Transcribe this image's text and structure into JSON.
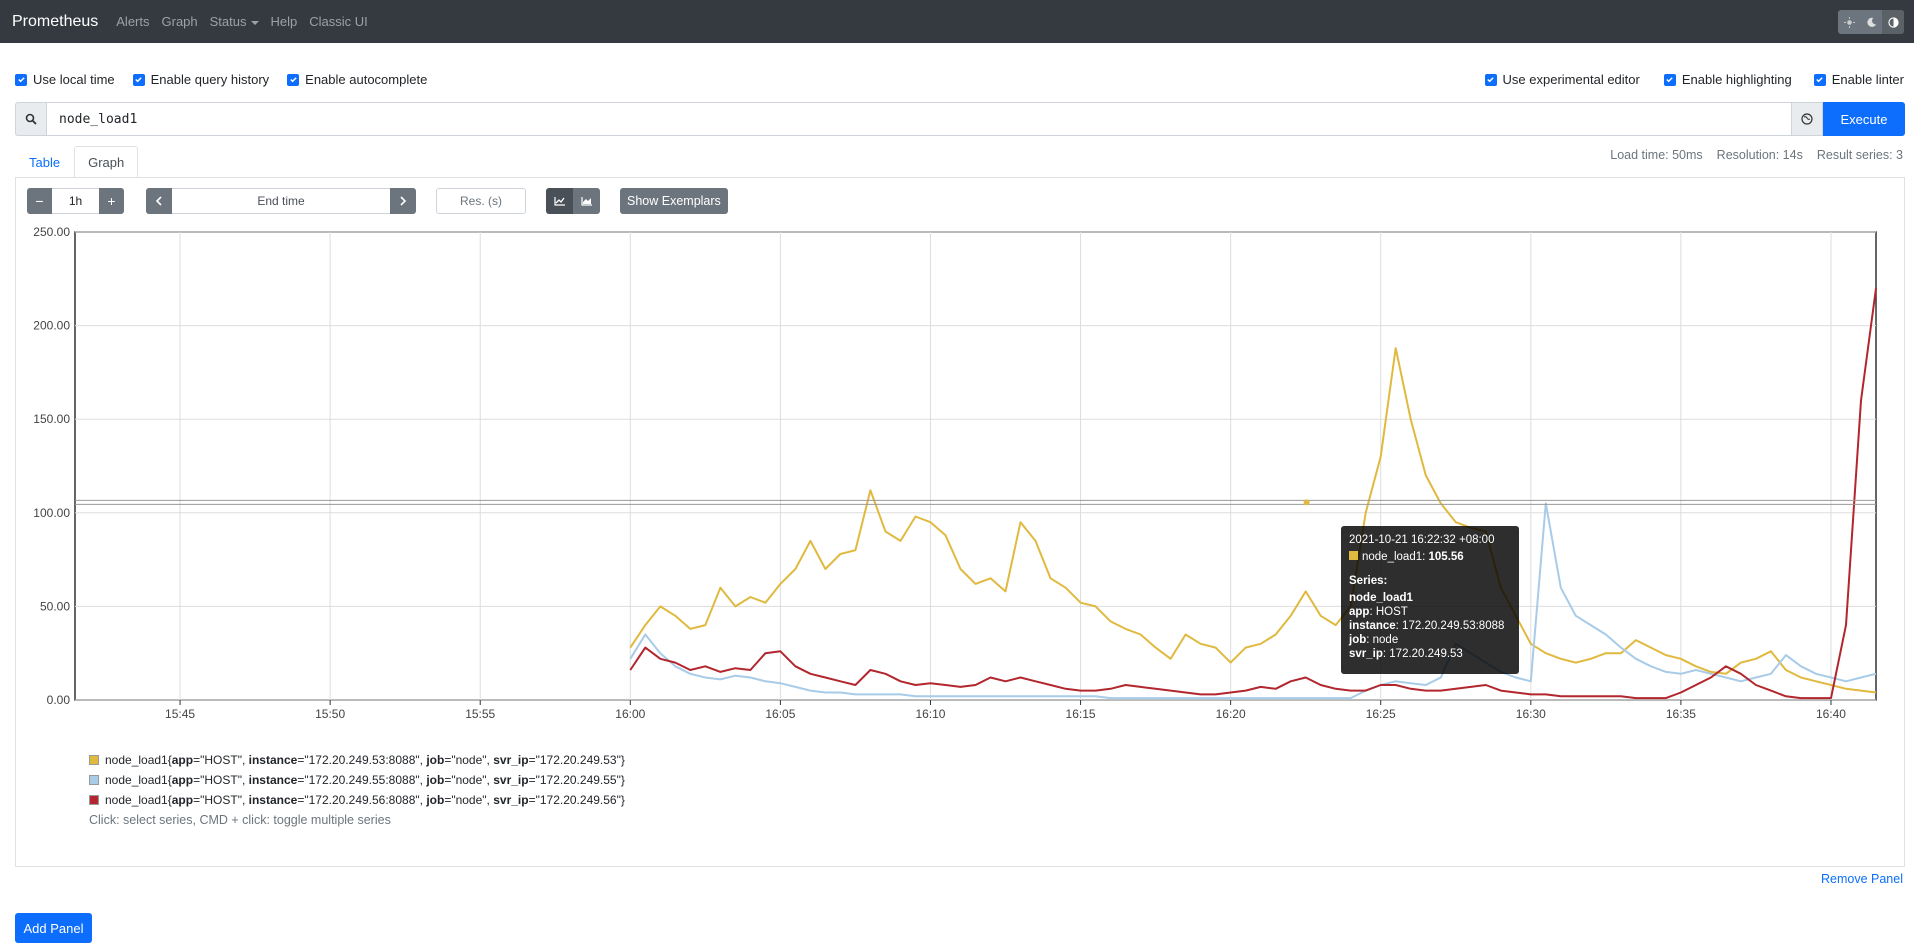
{
  "navbar": {
    "brand": "Prometheus",
    "links": [
      "Alerts",
      "Graph",
      "Status",
      "Help",
      "Classic UI"
    ]
  },
  "options_left": [
    "Use local time",
    "Enable query history",
    "Enable autocomplete"
  ],
  "options_right": [
    "Use experimental editor",
    "Enable highlighting",
    "Enable linter"
  ],
  "query": {
    "value": "node_load1",
    "execute_label": "Execute"
  },
  "tabs": [
    "Table",
    "Graph"
  ],
  "stats": {
    "load_time": "Load time: 50ms",
    "resolution": "Resolution: 14s",
    "result_series": "Result series: 3"
  },
  "controls": {
    "minus": "−",
    "range": "1h",
    "plus": "+",
    "end_time": "End time",
    "res_placeholder": "Res. (s)",
    "exemplars_label": "Show Exemplars"
  },
  "tooltip": {
    "time": "2021-10-21 16:22:32 +08:00",
    "metric": "node_load1:",
    "value": "105.56",
    "series_label": "Series:",
    "name": "node_load1",
    "app_key": "app",
    "app_val": ": HOST",
    "instance_key": "instance",
    "instance_val": ": 172.20.249.53:8088",
    "job_key": "job",
    "job_val": ": node",
    "svr_key": "svr_ip",
    "svr_val": ": 172.20.249.53"
  },
  "legend": [
    {
      "name": "node_load1",
      "app": "\"HOST\"",
      "instance": "\"172.20.249.53:8088\"",
      "job": "\"node\"",
      "svr_ip": "\"172.20.249.53\"",
      "color": "#e0b93f"
    },
    {
      "name": "node_load1",
      "app": "\"HOST\"",
      "instance": "\"172.20.249.55:8088\"",
      "job": "\"node\"",
      "svr_ip": "\"172.20.249.55\"",
      "color": "#a8cbe8"
    },
    {
      "name": "node_load1",
      "app": "\"HOST\"",
      "instance": "\"172.20.249.56:8088\"",
      "job": "\"node\"",
      "svr_ip": "\"172.20.249.56\"",
      "color": "#b2262d"
    }
  ],
  "legend_hint": "Click: select series, CMD + click: toggle multiple series",
  "remove_panel": "Remove Panel",
  "add_panel": "Add Panel",
  "chart_data": {
    "type": "line",
    "x_ticks": [
      "15:45",
      "15:50",
      "15:55",
      "16:00",
      "16:05",
      "16:10",
      "16:15",
      "16:20",
      "16:25",
      "16:30",
      "16:35",
      "16:40"
    ],
    "y_ticks": [
      "0.00",
      "50.00",
      "100.00",
      "150.00",
      "200.00",
      "250.00"
    ],
    "ylim": [
      0,
      250
    ],
    "xlim_minutes": [
      -3.5,
      56.5
    ],
    "grid": true,
    "series": [
      {
        "color": "#e0b93f",
        "x": [
          15,
          15.5,
          16,
          16.5,
          17,
          17.5,
          18,
          18.5,
          19,
          19.5,
          20,
          20.5,
          21,
          21.5,
          22,
          22.5,
          23,
          23.5,
          24,
          24.5,
          25,
          25.5,
          26,
          26.5,
          27,
          27.5,
          28,
          28.5,
          29,
          29.5,
          30,
          30.5,
          31,
          31.5,
          32,
          32.5,
          33,
          33.5,
          34,
          34.5,
          35,
          35.5,
          36,
          36.5,
          37,
          37.5,
          38,
          38.5,
          39,
          39.5,
          40,
          40.5,
          41,
          41.5,
          42,
          42.5,
          43,
          43.5,
          44,
          44.5,
          45,
          45.5,
          46,
          46.5,
          47,
          47.5,
          48,
          48.5,
          49,
          49.5,
          50,
          50.5,
          51,
          51.5,
          52,
          52.5,
          53,
          53.5,
          54,
          54.5,
          55,
          55.5,
          56,
          56.5
        ],
        "y": [
          28,
          40,
          50,
          45,
          38,
          40,
          60,
          50,
          55,
          52,
          62,
          70,
          85,
          70,
          78,
          80,
          112,
          90,
          85,
          98,
          95,
          88,
          70,
          62,
          65,
          58,
          95,
          85,
          65,
          60,
          52,
          50,
          42,
          38,
          35,
          28,
          22,
          35,
          30,
          28,
          20,
          28,
          30,
          35,
          45,
          58,
          45,
          40,
          50,
          100,
          130,
          188,
          150,
          120,
          105,
          95,
          92,
          90,
          60,
          45,
          30,
          25,
          22,
          20,
          22,
          25,
          25,
          32,
          28,
          24,
          22,
          18,
          15,
          14,
          20,
          22,
          26,
          16,
          12,
          10,
          8,
          6,
          5,
          4
        ],
        "name": ""
      },
      {
        "color": "#a8cbe8",
        "x": [
          15,
          15.5,
          16,
          16.5,
          17,
          17.5,
          18,
          18.5,
          19,
          19.5,
          20,
          20.5,
          21,
          21.5,
          22,
          22.5,
          23,
          23.5,
          24,
          24.5,
          25,
          25.5,
          26,
          26.5,
          27,
          27.5,
          28,
          28.5,
          29,
          29.5,
          30,
          30.5,
          31,
          31.5,
          32,
          32.5,
          33,
          33.5,
          34,
          34.5,
          35,
          35.5,
          36,
          36.5,
          37,
          37.5,
          38,
          38.5,
          39,
          39.5,
          40,
          40.5,
          41,
          41.5,
          42,
          42.5,
          43,
          43.5,
          44,
          44.5,
          45,
          45.5,
          46,
          46.5,
          47,
          47.5,
          48,
          48.5,
          49,
          49.5,
          50,
          50.5,
          51,
          51.5,
          52,
          52.5,
          53,
          53.5,
          54,
          54.5,
          55,
          55.5,
          56,
          56.5
        ],
        "y": [
          22,
          35,
          25,
          18,
          14,
          12,
          11,
          13,
          12,
          10,
          9,
          7,
          5,
          4,
          4,
          3,
          3,
          3,
          3,
          2,
          2,
          2,
          2,
          2,
          2,
          2,
          2,
          2,
          2,
          2,
          2,
          2,
          1,
          1,
          1,
          1,
          1,
          1,
          1,
          1,
          1,
          1,
          1,
          1,
          1,
          1,
          1,
          1,
          1,
          5,
          8,
          10,
          9,
          8,
          12,
          30,
          25,
          20,
          15,
          12,
          10,
          105,
          60,
          45,
          40,
          35,
          28,
          22,
          18,
          15,
          14,
          16,
          14,
          12,
          10,
          12,
          14,
          24,
          18,
          14,
          12,
          10,
          12,
          14
        ],
        "name": ""
      },
      {
        "color": "#b2262d",
        "x": [
          15,
          15.5,
          16,
          16.5,
          17,
          17.5,
          18,
          18.5,
          19,
          19.5,
          20,
          20.5,
          21,
          21.5,
          22,
          22.5,
          23,
          23.5,
          24,
          24.5,
          25,
          25.5,
          26,
          26.5,
          27,
          27.5,
          28,
          28.5,
          29,
          29.5,
          30,
          30.5,
          31,
          31.5,
          32,
          32.5,
          33,
          33.5,
          34,
          34.5,
          35,
          35.5,
          36,
          36.5,
          37,
          37.5,
          38,
          38.5,
          39,
          39.5,
          40,
          40.5,
          41,
          41.5,
          42,
          42.5,
          43,
          43.5,
          44,
          44.5,
          45,
          45.5,
          46,
          46.5,
          47,
          47.5,
          48,
          48.5,
          49,
          49.5,
          50,
          50.5,
          51,
          51.5,
          52,
          52.5,
          53,
          53.5,
          54,
          54.5,
          55,
          55.5,
          56,
          56.5
        ],
        "y": [
          16,
          28,
          22,
          20,
          16,
          18,
          15,
          17,
          16,
          25,
          26,
          18,
          14,
          12,
          10,
          8,
          16,
          14,
          10,
          8,
          9,
          8,
          7,
          8,
          12,
          10,
          12,
          10,
          8,
          6,
          5,
          5,
          6,
          8,
          7,
          6,
          5,
          4,
          3,
          3,
          4,
          5,
          7,
          6,
          10,
          12,
          8,
          6,
          5,
          5,
          8,
          8,
          6,
          5,
          5,
          6,
          7,
          8,
          5,
          4,
          3,
          3,
          2,
          2,
          2,
          2,
          2,
          1,
          1,
          1,
          4,
          8,
          12,
          18,
          14,
          8,
          5,
          2,
          1,
          1,
          1,
          40,
          160,
          220
        ],
        "name": ""
      }
    ]
  }
}
